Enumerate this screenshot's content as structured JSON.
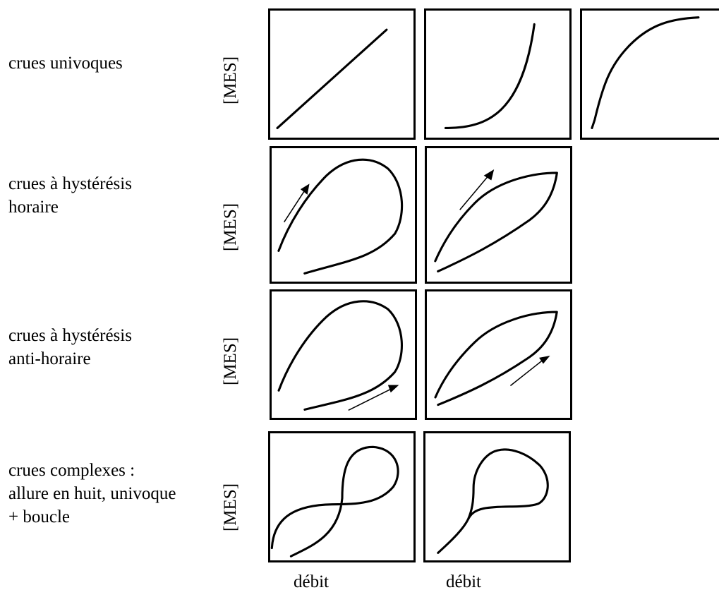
{
  "rows": [
    {
      "lines": [
        "crues univoques"
      ]
    },
    {
      "lines": [
        "crues à hystérésis",
        "horaire"
      ]
    },
    {
      "lines": [
        "crues à hystérésis",
        "anti-horaire"
      ]
    },
    {
      "lines": [
        "crues complexes :",
        "allure en huit, univoque",
        "+ boucle"
      ]
    }
  ],
  "y_axis_label": "[MES]",
  "x_axis_label": "débit"
}
